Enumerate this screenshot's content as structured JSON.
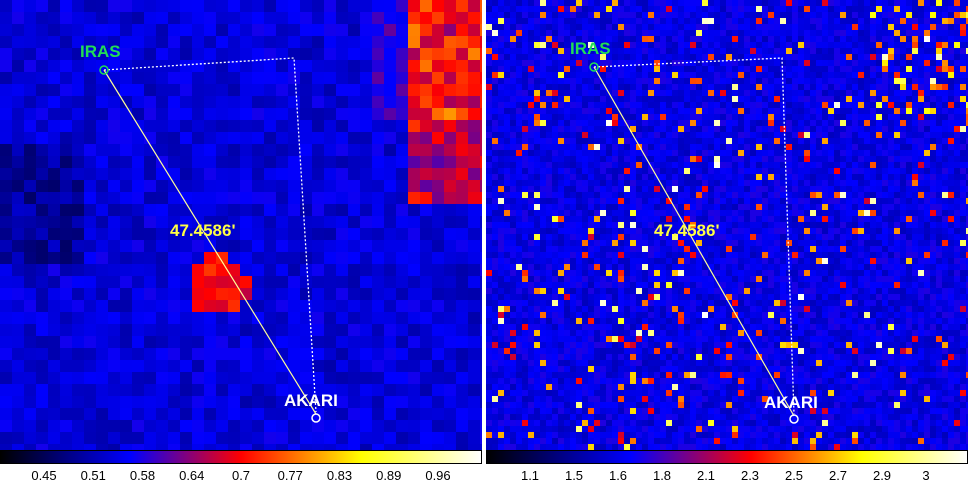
{
  "panels": [
    {
      "id": "left",
      "labels": {
        "source_a": "IRAS",
        "source_b": "AKARI",
        "distance": "47.4586'"
      },
      "colorbar": {
        "ticks": [
          "0.45",
          "0.51",
          "0.58",
          "0.64",
          "0.7",
          "0.77",
          "0.83",
          "0.89",
          "0.96"
        ]
      },
      "colors": {
        "label_a": "#22dd55",
        "label_b": "#ffffff",
        "distance": "#ffff44"
      }
    },
    {
      "id": "right",
      "labels": {
        "source_a": "IRAS",
        "source_b": "AKARI",
        "distance": "47.4586'"
      },
      "colorbar": {
        "ticks": [
          "1.1",
          "1.5",
          "1.6",
          "1.8",
          "2.1",
          "2.3",
          "2.5",
          "2.7",
          "2.9",
          "3"
        ]
      },
      "colors": {
        "label_a": "#22dd55",
        "label_b": "#ffffff",
        "distance": "#ffff44"
      }
    }
  ]
}
